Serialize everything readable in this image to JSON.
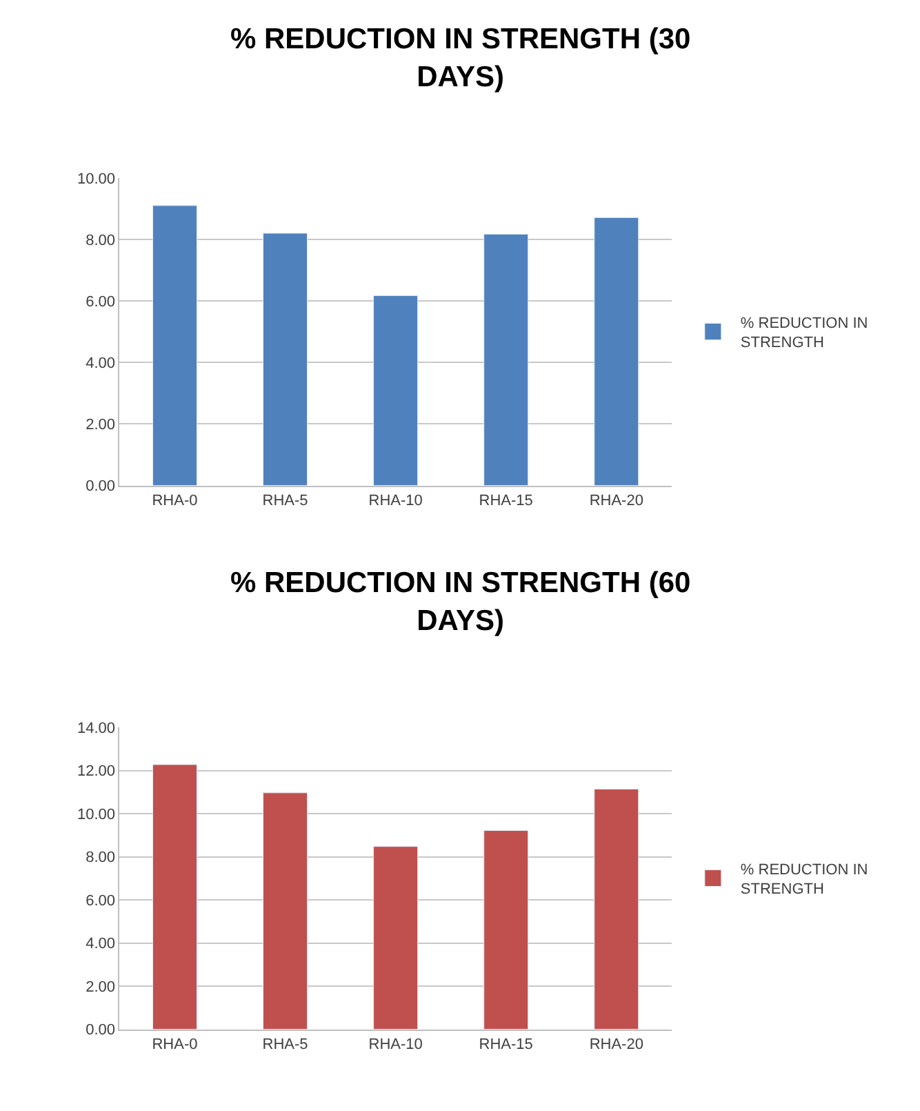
{
  "chart_data": [
    {
      "type": "bar",
      "title": "% REDUCTION IN STRENGTH (30 DAYS)",
      "categories": [
        "RHA-0",
        "RHA-5",
        "RHA-10",
        "RHA-15",
        "RHA-20"
      ],
      "series": [
        {
          "name": "% REDUCTION IN STRENGTH",
          "color": "#4f81bd",
          "values": [
            9.11,
            8.21,
            6.18,
            8.18,
            8.72
          ]
        }
      ],
      "ylim": [
        0,
        10
      ],
      "yticks": [
        {
          "value": 0,
          "label": "0.00"
        },
        {
          "value": 2,
          "label": "2.00"
        },
        {
          "value": 4,
          "label": "4.00"
        },
        {
          "value": 6,
          "label": "6.00"
        },
        {
          "value": 8,
          "label": "8.00"
        },
        {
          "value": 10,
          "label": "10.00"
        }
      ],
      "grid": "y",
      "legend": "right"
    },
    {
      "type": "bar",
      "title": "% REDUCTION IN STRENGTH (60 DAYS)",
      "categories": [
        "RHA-0",
        "RHA-5",
        "RHA-10",
        "RHA-15",
        "RHA-20"
      ],
      "series": [
        {
          "name": "% REDUCTION IN STRENGTH",
          "color": "#c0504d",
          "values": [
            12.28,
            10.97,
            8.48,
            9.22,
            11.14
          ]
        }
      ],
      "ylim": [
        0,
        14
      ],
      "yticks": [
        {
          "value": 0,
          "label": "0.00"
        },
        {
          "value": 2,
          "label": "2.00"
        },
        {
          "value": 4,
          "label": "4.00"
        },
        {
          "value": 6,
          "label": "6.00"
        },
        {
          "value": 8,
          "label": "8.00"
        },
        {
          "value": 10,
          "label": "10.00"
        },
        {
          "value": 12,
          "label": "12.00"
        },
        {
          "value": 14,
          "label": "14.00"
        }
      ],
      "grid": "y",
      "legend": "right"
    }
  ]
}
